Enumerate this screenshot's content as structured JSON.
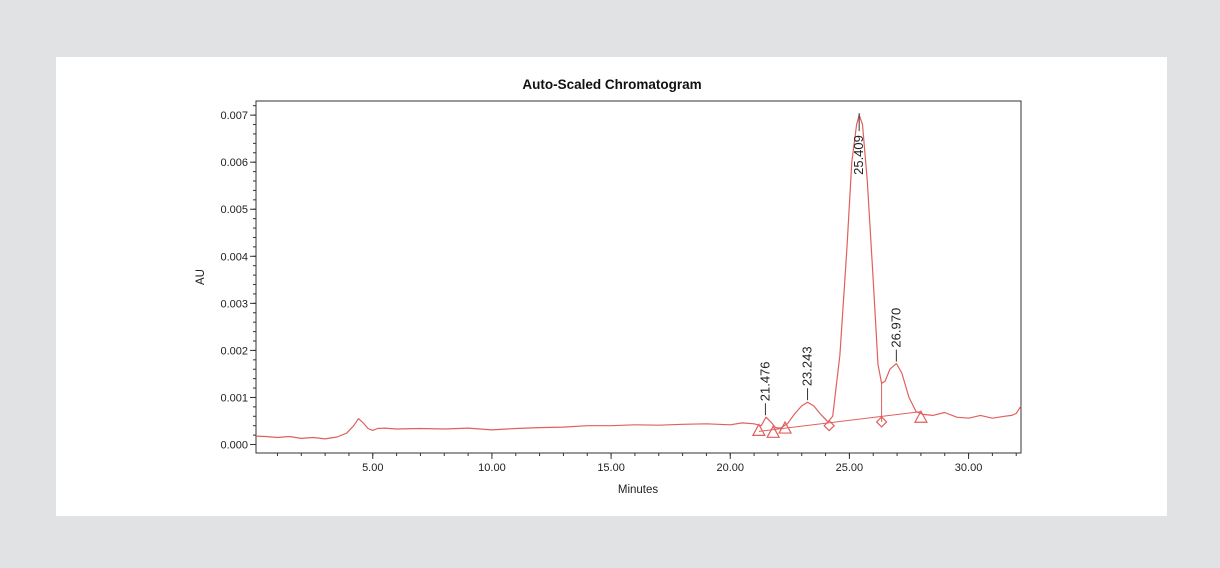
{
  "chart_data": {
    "type": "line",
    "title": "Auto-Scaled Chromatogram",
    "xlabel": "Minutes",
    "ylabel": "AU",
    "xlim": [
      0.1,
      32.2
    ],
    "ylim": [
      -0.00018,
      0.0073
    ],
    "x_ticks": [
      {
        "value": 5,
        "label": "5.00"
      },
      {
        "value": 10,
        "label": "10.00"
      },
      {
        "value": 15,
        "label": "15.00"
      },
      {
        "value": 20,
        "label": "20.00"
      },
      {
        "value": 25,
        "label": "25.00"
      },
      {
        "value": 30,
        "label": "30.00"
      }
    ],
    "y_ticks": [
      {
        "value": 0.0,
        "label": "0.000"
      },
      {
        "value": 0.001,
        "label": "0.001"
      },
      {
        "value": 0.002,
        "label": "0.002"
      },
      {
        "value": 0.003,
        "label": "0.003"
      },
      {
        "value": 0.004,
        "label": "0.004"
      },
      {
        "value": 0.005,
        "label": "0.005"
      },
      {
        "value": 0.006,
        "label": "0.006"
      },
      {
        "value": 0.007,
        "label": "0.007"
      }
    ],
    "grid": false,
    "line_color": "#e0605e",
    "series": [
      {
        "x": [
          0.1,
          0.5,
          1.0,
          1.5,
          2.0,
          2.5,
          3.0,
          3.5,
          3.9,
          4.2,
          4.4,
          4.6,
          4.8,
          5.0,
          5.2,
          5.5,
          6.0,
          7.0,
          8.0,
          9.0,
          10.0,
          11.0,
          12.0,
          13.0,
          14.0,
          15.0,
          16.0,
          17.0,
          18.0,
          19.0,
          20.0,
          20.5,
          21.0,
          21.3,
          21.5,
          21.7,
          21.9,
          22.1,
          22.4,
          22.7,
          23.0,
          23.24,
          23.5,
          23.8,
          24.1,
          24.3,
          24.6,
          24.9,
          25.1,
          25.3,
          25.41,
          25.55,
          25.75,
          26.0,
          26.2,
          26.35,
          26.5,
          26.7,
          26.97,
          27.2,
          27.5,
          27.8,
          28.1,
          28.5,
          29.0,
          29.5,
          30.0,
          30.5,
          31.0,
          31.5,
          31.8,
          32.0,
          32.2
        ],
        "y": [
          0.00018,
          0.00017,
          0.00015,
          0.00017,
          0.00013,
          0.00015,
          0.00012,
          0.00016,
          0.00024,
          0.0004,
          0.00055,
          0.00046,
          0.00034,
          0.0003,
          0.00034,
          0.00035,
          0.00033,
          0.00034,
          0.00033,
          0.00035,
          0.00031,
          0.00034,
          0.00036,
          0.00037,
          0.0004,
          0.0004,
          0.00042,
          0.00041,
          0.00043,
          0.00044,
          0.00042,
          0.00046,
          0.00044,
          0.0004,
          0.00058,
          0.00048,
          0.00036,
          0.00035,
          0.00044,
          0.00065,
          0.00082,
          0.0009,
          0.00082,
          0.00064,
          0.00048,
          0.0006,
          0.0019,
          0.0042,
          0.006,
          0.0068,
          0.007,
          0.0068,
          0.0056,
          0.0035,
          0.0017,
          0.0013,
          0.00135,
          0.0016,
          0.00172,
          0.00152,
          0.001,
          0.0007,
          0.00064,
          0.00062,
          0.00068,
          0.00058,
          0.00056,
          0.00062,
          0.00056,
          0.0006,
          0.00062,
          0.00066,
          0.00082
        ]
      }
    ],
    "peaks": [
      {
        "label": "21.476",
        "x": 21.476,
        "y": 0.00058
      },
      {
        "label": "23.243",
        "x": 23.243,
        "y": 0.0009
      },
      {
        "label": "25.409",
        "x": 25.409,
        "y": 0.007
      },
      {
        "label": "26.970",
        "x": 26.97,
        "y": 0.00172
      }
    ],
    "baseline": {
      "x": [
        21.2,
        28.0
      ],
      "y": [
        0.00028,
        0.0007
      ]
    },
    "triangle_markers": [
      {
        "x": 21.2,
        "y": 0.0003
      },
      {
        "x": 21.8,
        "y": 0.00026
      },
      {
        "x": 22.3,
        "y": 0.00035
      },
      {
        "x": 28.0,
        "y": 0.00058
      }
    ],
    "diamond_markers": [
      {
        "x": 24.15,
        "y": 0.0004
      },
      {
        "x": 26.35,
        "y": 0.00048
      }
    ],
    "drop_lines": [
      {
        "x": 26.35,
        "y_from": 0.00048,
        "y_to": 0.0013
      }
    ]
  }
}
